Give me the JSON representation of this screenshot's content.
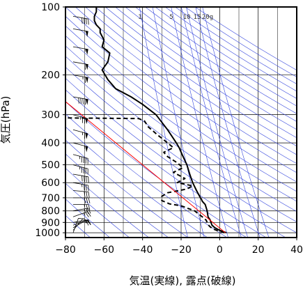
{
  "chart_data": {
    "type": "line",
    "title": "",
    "xlabel": "気温(実線), 露点(破線)",
    "ylabel": "気圧(hPa)",
    "xlim": [
      -80,
      40
    ],
    "ylim": [
      1050,
      100
    ],
    "y_scale": "log",
    "x_ticks": [
      -80,
      -60,
      -40,
      -20,
      0,
      20,
      40
    ],
    "x_tick_labels": [
      "−80",
      "−60",
      "−40",
      "−20",
      "0",
      "20",
      "40"
    ],
    "y_ticks": [
      100,
      200,
      300,
      400,
      500,
      600,
      700,
      800,
      900,
      1000
    ],
    "y_tick_labels": [
      "100",
      "200",
      "300",
      "400",
      "500",
      "600",
      "700",
      "800",
      "900",
      "1000"
    ],
    "grid": true,
    "mixing_ratio_labels": [
      "1",
      "5",
      "10",
      "15",
      "20g"
    ],
    "series": [
      {
        "name": "",
        "style": "solid",
        "points": [
          {
            "t": 3.5,
            "p": 1000
          },
          {
            "t": 0.0,
            "p": 975
          },
          {
            "t": -2.5,
            "p": 950
          },
          {
            "t": -4.0,
            "p": 925
          },
          {
            "t": -4.5,
            "p": 900
          },
          {
            "t": -5.0,
            "p": 875
          },
          {
            "t": -6.0,
            "p": 850
          },
          {
            "t": -6.5,
            "p": 800
          },
          {
            "t": -7.5,
            "p": 750
          },
          {
            "t": -9.0,
            "p": 725
          },
          {
            "t": -9.5,
            "p": 710
          },
          {
            "t": -10.0,
            "p": 700
          },
          {
            "t": -12.0,
            "p": 650
          },
          {
            "t": -14.0,
            "p": 600
          },
          {
            "t": -15.5,
            "p": 550
          },
          {
            "t": -17.0,
            "p": 500
          },
          {
            "t": -19.5,
            "p": 450
          },
          {
            "t": -21.0,
            "p": 420
          },
          {
            "t": -22.5,
            "p": 400
          },
          {
            "t": -27.0,
            "p": 350
          },
          {
            "t": -33.0,
            "p": 300
          },
          {
            "t": -40.0,
            "p": 270
          },
          {
            "t": -46.0,
            "p": 250
          },
          {
            "t": -54.0,
            "p": 230
          },
          {
            "t": -58.0,
            "p": 210
          },
          {
            "t": -61.0,
            "p": 190
          },
          {
            "t": -58.0,
            "p": 175
          },
          {
            "t": -57.0,
            "p": 160
          },
          {
            "t": -61.0,
            "p": 150
          },
          {
            "t": -60.0,
            "p": 140
          },
          {
            "t": -62.0,
            "p": 130
          },
          {
            "t": -62.0,
            "p": 125
          },
          {
            "t": -64.0,
            "p": 120
          },
          {
            "t": -65.0,
            "p": 115
          },
          {
            "t": -65.0,
            "p": 110
          },
          {
            "t": -64.0,
            "p": 105
          },
          {
            "t": -64.0,
            "p": 100
          }
        ]
      },
      {
        "name": "",
        "style": "dashed",
        "points": [
          {
            "t": 2.5,
            "p": 1000
          },
          {
            "t": -1.0,
            "p": 980
          },
          {
            "t": -3.5,
            "p": 960
          },
          {
            "t": -5.0,
            "p": 940
          },
          {
            "t": -6.0,
            "p": 920
          },
          {
            "t": -7.0,
            "p": 880
          },
          {
            "t": -9.0,
            "p": 850
          },
          {
            "t": -13.0,
            "p": 800
          },
          {
            "t": -20.0,
            "p": 760
          },
          {
            "t": -26.0,
            "p": 745
          },
          {
            "t": -30.0,
            "p": 720
          },
          {
            "t": -30.0,
            "p": 690
          },
          {
            "t": -27.0,
            "p": 665
          },
          {
            "t": -23.0,
            "p": 655
          },
          {
            "t": -17.0,
            "p": 640
          },
          {
            "t": -14.0,
            "p": 620
          },
          {
            "t": -22.0,
            "p": 600
          },
          {
            "t": -18.0,
            "p": 575
          },
          {
            "t": -24.0,
            "p": 540
          },
          {
            "t": -19.0,
            "p": 515
          },
          {
            "t": -22.0,
            "p": 490
          },
          {
            "t": -27.0,
            "p": 460
          },
          {
            "t": -29.0,
            "p": 440
          },
          {
            "t": -24.0,
            "p": 420
          },
          {
            "t": -27.0,
            "p": 400
          },
          {
            "t": -32.0,
            "p": 370
          },
          {
            "t": -37.0,
            "p": 340
          },
          {
            "t": -39.0,
            "p": 320
          },
          {
            "t": -42.0,
            "p": 312
          },
          {
            "t": -79.0,
            "p": 310
          }
        ]
      },
      {
        "name": "",
        "style": "solid",
        "color": "#ff0000",
        "points": [
          {
            "t": 3.0,
            "p": 1000
          },
          {
            "t": -83.0,
            "p": 250
          }
        ]
      }
    ],
    "wind_barbs": [
      {
        "p": 1000,
        "speed_kt": 10,
        "dir_deg": 200
      },
      {
        "p": 975,
        "speed_kt": 10,
        "dir_deg": 220
      },
      {
        "p": 950,
        "speed_kt": 15,
        "dir_deg": 240
      },
      {
        "p": 925,
        "speed_kt": 15,
        "dir_deg": 250
      },
      {
        "p": 900,
        "speed_kt": 20,
        "dir_deg": 260
      },
      {
        "p": 850,
        "speed_kt": 25,
        "dir_deg": 250
      },
      {
        "p": 800,
        "speed_kt": 25,
        "dir_deg": 260
      },
      {
        "p": 750,
        "speed_kt": 25,
        "dir_deg": 270
      },
      {
        "p": 700,
        "speed_kt": 30,
        "dir_deg": 270
      },
      {
        "p": 650,
        "speed_kt": 30,
        "dir_deg": 275
      },
      {
        "p": 600,
        "speed_kt": 35,
        "dir_deg": 280
      },
      {
        "p": 550,
        "speed_kt": 40,
        "dir_deg": 280
      },
      {
        "p": 500,
        "speed_kt": 45,
        "dir_deg": 285
      },
      {
        "p": 450,
        "speed_kt": 45,
        "dir_deg": 285
      },
      {
        "p": 400,
        "speed_kt": 55,
        "dir_deg": 285
      },
      {
        "p": 350,
        "speed_kt": 65,
        "dir_deg": 285
      },
      {
        "p": 300,
        "speed_kt": 75,
        "dir_deg": 285
      },
      {
        "p": 250,
        "speed_kt": 90,
        "dir_deg": 280
      },
      {
        "p": 200,
        "speed_kt": 65,
        "dir_deg": 280
      },
      {
        "p": 175,
        "speed_kt": 60,
        "dir_deg": 280
      },
      {
        "p": 150,
        "speed_kt": 55,
        "dir_deg": 280
      },
      {
        "p": 125,
        "speed_kt": 50,
        "dir_deg": 280
      },
      {
        "p": 110,
        "speed_kt": 40,
        "dir_deg": 280
      }
    ]
  }
}
